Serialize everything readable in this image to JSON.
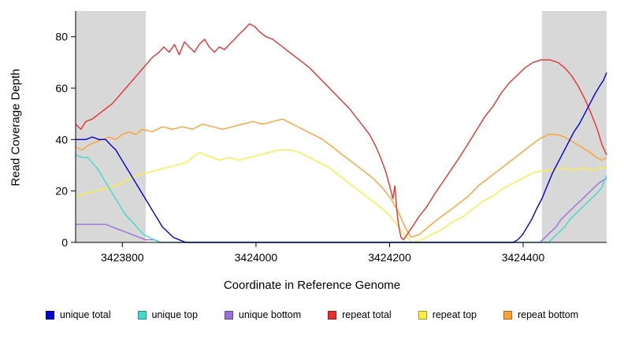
{
  "chart_data": {
    "type": "line",
    "title": "",
    "xlabel": "Coordinate in Reference Genome",
    "ylabel": "Read Coverage Depth",
    "xlim": [
      3423730,
      3424525
    ],
    "ylim": [
      0,
      90
    ],
    "x_ticks": [
      3423800,
      3424000,
      3424200,
      3424400
    ],
    "y_ticks": [
      0,
      20,
      40,
      60,
      80
    ],
    "grid": false,
    "legend_position": "bottom",
    "shade_color": "#d8d8d8",
    "shaded_regions": [
      {
        "x0": 3423730,
        "x1": 3423835
      },
      {
        "x0": 3424428,
        "x1": 3424525
      }
    ],
    "draw_order": [
      4,
      5,
      3,
      2,
      1,
      0
    ],
    "series": [
      {
        "name": "unique total",
        "color": "#0000cc",
        "points": [
          [
            3423730,
            40
          ],
          [
            3423745,
            40
          ],
          [
            3423755,
            41
          ],
          [
            3423765,
            40
          ],
          [
            3423775,
            40
          ],
          [
            3423782,
            38
          ],
          [
            3423790,
            36
          ],
          [
            3423797,
            33
          ],
          [
            3423804,
            30
          ],
          [
            3423811,
            27
          ],
          [
            3423818,
            24
          ],
          [
            3423825,
            21
          ],
          [
            3423832,
            18
          ],
          [
            3423839,
            15
          ],
          [
            3423846,
            12
          ],
          [
            3423853,
            9
          ],
          [
            3423860,
            6
          ],
          [
            3423868,
            4
          ],
          [
            3423876,
            2
          ],
          [
            3423885,
            1
          ],
          [
            3423895,
            0
          ],
          [
            3424385,
            0
          ],
          [
            3424392,
            1
          ],
          [
            3424399,
            3
          ],
          [
            3424406,
            6
          ],
          [
            3424413,
            9
          ],
          [
            3424420,
            13
          ],
          [
            3424428,
            17
          ],
          [
            3424436,
            22
          ],
          [
            3424444,
            27
          ],
          [
            3424452,
            31
          ],
          [
            3424460,
            35
          ],
          [
            3424468,
            39
          ],
          [
            3424476,
            43
          ],
          [
            3424484,
            46
          ],
          [
            3424492,
            50
          ],
          [
            3424500,
            54
          ],
          [
            3424508,
            58
          ],
          [
            3424515,
            61
          ],
          [
            3424520,
            63
          ],
          [
            3424525,
            66
          ]
        ]
      },
      {
        "name": "unique top",
        "color": "#40d8d0",
        "points": [
          [
            3423730,
            34
          ],
          [
            3423740,
            33
          ],
          [
            3423748,
            33
          ],
          [
            3423755,
            31
          ],
          [
            3423762,
            29
          ],
          [
            3423769,
            26
          ],
          [
            3423776,
            23
          ],
          [
            3423783,
            20
          ],
          [
            3423790,
            17
          ],
          [
            3423797,
            14
          ],
          [
            3423804,
            11
          ],
          [
            3423811,
            9
          ],
          [
            3423818,
            7
          ],
          [
            3423825,
            5
          ],
          [
            3423832,
            3
          ],
          [
            3423840,
            2
          ],
          [
            3423848,
            1
          ],
          [
            3423856,
            0
          ],
          [
            3424438,
            0
          ],
          [
            3424446,
            2
          ],
          [
            3424454,
            4
          ],
          [
            3424462,
            6
          ],
          [
            3424470,
            9
          ],
          [
            3424478,
            11
          ],
          [
            3424486,
            13
          ],
          [
            3424494,
            15
          ],
          [
            3424502,
            17
          ],
          [
            3424510,
            19
          ],
          [
            3424517,
            21
          ],
          [
            3424525,
            26
          ]
        ]
      },
      {
        "name": "unique bottom",
        "color": "#9a6fd8",
        "points": [
          [
            3423730,
            7
          ],
          [
            3423760,
            7
          ],
          [
            3423775,
            7
          ],
          [
            3423785,
            6
          ],
          [
            3423795,
            5
          ],
          [
            3423805,
            4
          ],
          [
            3423815,
            3
          ],
          [
            3423825,
            2
          ],
          [
            3423835,
            1
          ],
          [
            3423848,
            1
          ],
          [
            3423858,
            0
          ],
          [
            3424425,
            0
          ],
          [
            3424433,
            2
          ],
          [
            3424441,
            4
          ],
          [
            3424449,
            6
          ],
          [
            3424457,
            9
          ],
          [
            3424465,
            11
          ],
          [
            3424473,
            13
          ],
          [
            3424481,
            15
          ],
          [
            3424489,
            17
          ],
          [
            3424497,
            19
          ],
          [
            3424505,
            21
          ],
          [
            3424513,
            23
          ],
          [
            3424519,
            24
          ],
          [
            3424525,
            25
          ]
        ]
      },
      {
        "name": "repeat total",
        "color": "#e83030",
        "points": [
          [
            3423730,
            46
          ],
          [
            3423738,
            44
          ],
          [
            3423745,
            47
          ],
          [
            3423755,
            48
          ],
          [
            3423765,
            50
          ],
          [
            3423775,
            52
          ],
          [
            3423785,
            54
          ],
          [
            3423795,
            57
          ],
          [
            3423805,
            60
          ],
          [
            3423815,
            63
          ],
          [
            3423825,
            66
          ],
          [
            3423835,
            69
          ],
          [
            3423845,
            72
          ],
          [
            3423855,
            74
          ],
          [
            3423862,
            76
          ],
          [
            3423870,
            74
          ],
          [
            3423878,
            77
          ],
          [
            3423885,
            73
          ],
          [
            3423893,
            78
          ],
          [
            3423900,
            76
          ],
          [
            3423908,
            74
          ],
          [
            3423915,
            77
          ],
          [
            3423923,
            79
          ],
          [
            3423930,
            76
          ],
          [
            3423938,
            74
          ],
          [
            3423945,
            76
          ],
          [
            3423953,
            75
          ],
          [
            3423960,
            77
          ],
          [
            3423968,
            79
          ],
          [
            3423975,
            81
          ],
          [
            3423983,
            83
          ],
          [
            3423990,
            85
          ],
          [
            3423998,
            84
          ],
          [
            3424005,
            82
          ],
          [
            3424015,
            80
          ],
          [
            3424025,
            79
          ],
          [
            3424035,
            77
          ],
          [
            3424050,
            74
          ],
          [
            3424065,
            71
          ],
          [
            3424080,
            68
          ],
          [
            3424095,
            64
          ],
          [
            3424110,
            60
          ],
          [
            3424125,
            56
          ],
          [
            3424140,
            52
          ],
          [
            3424155,
            47
          ],
          [
            3424170,
            42
          ],
          [
            3424180,
            37
          ],
          [
            3424188,
            32
          ],
          [
            3424195,
            27
          ],
          [
            3424200,
            22
          ],
          [
            3424205,
            17
          ],
          [
            3424208,
            22
          ],
          [
            3424211,
            12
          ],
          [
            3424214,
            6
          ],
          [
            3424217,
            2
          ],
          [
            3424221,
            1
          ],
          [
            3424226,
            3
          ],
          [
            3424234,
            6
          ],
          [
            3424244,
            10
          ],
          [
            3424256,
            14
          ],
          [
            3424268,
            19
          ],
          [
            3424281,
            24
          ],
          [
            3424294,
            29
          ],
          [
            3424307,
            34
          ],
          [
            3424319,
            39
          ],
          [
            3424331,
            44
          ],
          [
            3424343,
            49
          ],
          [
            3424355,
            53
          ],
          [
            3424367,
            58
          ],
          [
            3424379,
            62
          ],
          [
            3424391,
            65
          ],
          [
            3424403,
            68
          ],
          [
            3424415,
            70
          ],
          [
            3424427,
            71
          ],
          [
            3424440,
            71
          ],
          [
            3424452,
            70
          ],
          [
            3424462,
            68
          ],
          [
            3424472,
            65
          ],
          [
            3424482,
            61
          ],
          [
            3424492,
            56
          ],
          [
            3424502,
            50
          ],
          [
            3424511,
            44
          ],
          [
            3424518,
            38
          ],
          [
            3424525,
            34
          ]
        ]
      },
      {
        "name": "repeat top",
        "color": "#ffec40",
        "points": [
          [
            3423730,
            18
          ],
          [
            3423745,
            19
          ],
          [
            3423760,
            20
          ],
          [
            3423775,
            21
          ],
          [
            3423790,
            22
          ],
          [
            3423805,
            24
          ],
          [
            3423820,
            26
          ],
          [
            3423835,
            27
          ],
          [
            3423850,
            28
          ],
          [
            3423865,
            29
          ],
          [
            3423880,
            30
          ],
          [
            3423895,
            31
          ],
          [
            3423905,
            33
          ],
          [
            3423915,
            35
          ],
          [
            3423925,
            34
          ],
          [
            3423935,
            33
          ],
          [
            3423945,
            32
          ],
          [
            3423960,
            33
          ],
          [
            3423975,
            32
          ],
          [
            3423990,
            33
          ],
          [
            3424005,
            34
          ],
          [
            3424020,
            35
          ],
          [
            3424035,
            36
          ],
          [
            3424050,
            36
          ],
          [
            3424065,
            35
          ],
          [
            3424080,
            33
          ],
          [
            3424095,
            31
          ],
          [
            3424110,
            29
          ],
          [
            3424125,
            26
          ],
          [
            3424140,
            23
          ],
          [
            3424155,
            20
          ],
          [
            3424170,
            17
          ],
          [
            3424185,
            14
          ],
          [
            3424198,
            11
          ],
          [
            3424208,
            8
          ],
          [
            3424216,
            5
          ],
          [
            3424225,
            2
          ],
          [
            3424235,
            0
          ],
          [
            3424248,
            1
          ],
          [
            3424262,
            3
          ],
          [
            3424278,
            5
          ],
          [
            3424294,
            8
          ],
          [
            3424310,
            10
          ],
          [
            3424325,
            13
          ],
          [
            3424340,
            16
          ],
          [
            3424355,
            18
          ],
          [
            3424370,
            21
          ],
          [
            3424385,
            23
          ],
          [
            3424400,
            25
          ],
          [
            3424415,
            27
          ],
          [
            3424430,
            28
          ],
          [
            3424445,
            28
          ],
          [
            3424460,
            29
          ],
          [
            3424475,
            28
          ],
          [
            3424490,
            29
          ],
          [
            3424505,
            28
          ],
          [
            3424515,
            29
          ],
          [
            3424525,
            29
          ]
        ]
      },
      {
        "name": "repeat bottom",
        "color": "#ffa030",
        "points": [
          [
            3423730,
            37
          ],
          [
            3423740,
            36
          ],
          [
            3423750,
            38
          ],
          [
            3423760,
            39
          ],
          [
            3423770,
            40
          ],
          [
            3423780,
            41
          ],
          [
            3423790,
            40
          ],
          [
            3423800,
            42
          ],
          [
            3423810,
            43
          ],
          [
            3423820,
            42
          ],
          [
            3423830,
            44
          ],
          [
            3423845,
            43
          ],
          [
            3423860,
            45
          ],
          [
            3423875,
            44
          ],
          [
            3423890,
            45
          ],
          [
            3423905,
            44
          ],
          [
            3423920,
            46
          ],
          [
            3423935,
            45
          ],
          [
            3423950,
            44
          ],
          [
            3423965,
            45
          ],
          [
            3423980,
            46
          ],
          [
            3423995,
            47
          ],
          [
            3424010,
            46
          ],
          [
            3424025,
            47
          ],
          [
            3424040,
            48
          ],
          [
            3424055,
            46
          ],
          [
            3424070,
            44
          ],
          [
            3424085,
            42
          ],
          [
            3424100,
            40
          ],
          [
            3424115,
            37
          ],
          [
            3424130,
            34
          ],
          [
            3424145,
            31
          ],
          [
            3424160,
            28
          ],
          [
            3424175,
            25
          ],
          [
            3424190,
            21
          ],
          [
            3424202,
            17
          ],
          [
            3424213,
            12
          ],
          [
            3424223,
            6
          ],
          [
            3424232,
            2
          ],
          [
            3424244,
            3
          ],
          [
            3424258,
            6
          ],
          [
            3424272,
            9
          ],
          [
            3424288,
            12
          ],
          [
            3424303,
            15
          ],
          [
            3424318,
            18
          ],
          [
            3424333,
            22
          ],
          [
            3424348,
            25
          ],
          [
            3424363,
            28
          ],
          [
            3424378,
            31
          ],
          [
            3424393,
            34
          ],
          [
            3424408,
            37
          ],
          [
            3424423,
            40
          ],
          [
            3424438,
            42
          ],
          [
            3424450,
            42
          ],
          [
            3424462,
            41
          ],
          [
            3424475,
            39
          ],
          [
            3424488,
            37
          ],
          [
            3424500,
            35
          ],
          [
            3424510,
            33
          ],
          [
            3424518,
            32
          ],
          [
            3424525,
            33
          ]
        ]
      }
    ]
  }
}
